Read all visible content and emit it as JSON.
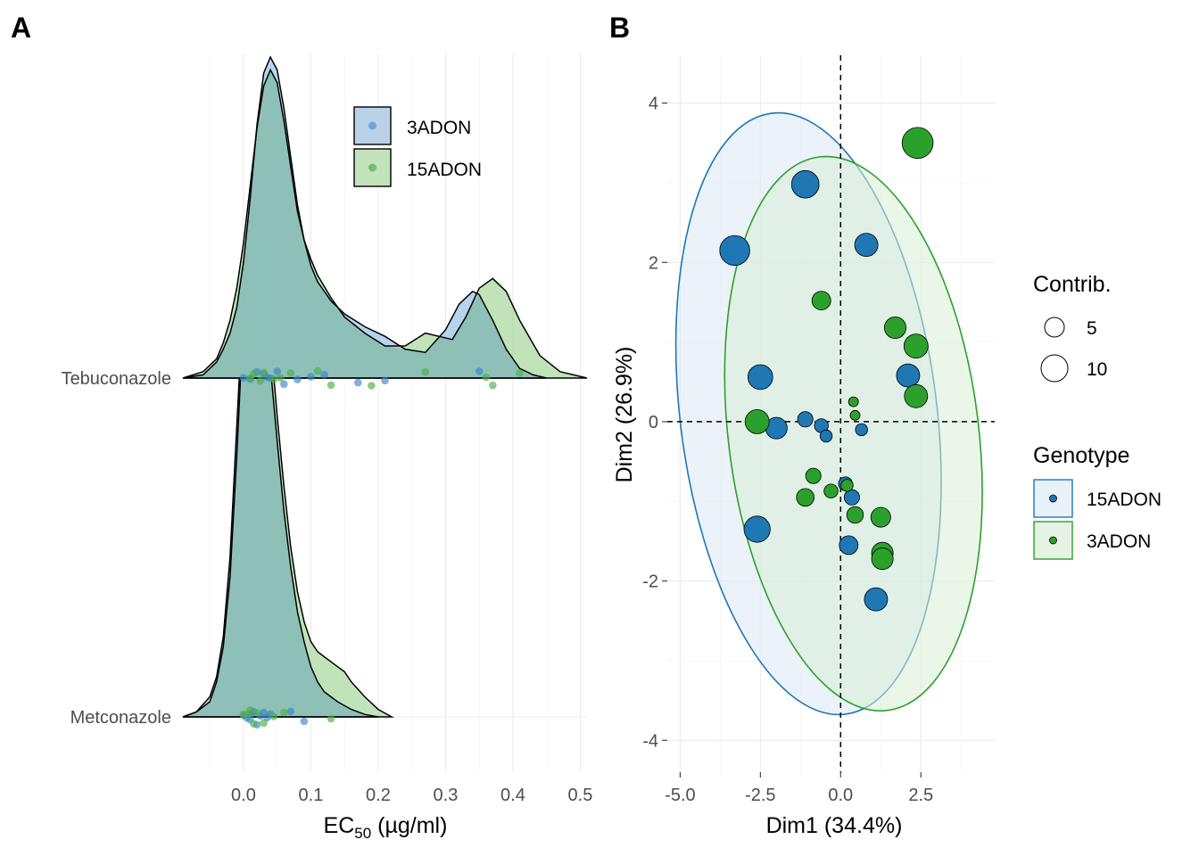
{
  "colors": {
    "blue": "#1f77b4",
    "green": "#2ca02c",
    "blue_fill": "#9dc3e6",
    "green_fill": "#a9d8a0",
    "teal_overlap": "#8cbfb8",
    "grid": "#ebebeb"
  },
  "chart_data": [
    {
      "panel": "A",
      "type": "area",
      "subtype": "ridgeline-density",
      "xlabel_main": "EC",
      "xlabel_sub": "50",
      "xlabel_unit": " (µg/ml)",
      "x_ticks": [
        "0.0",
        "0.1",
        "0.2",
        "0.3",
        "0.4",
        "0.5"
      ],
      "x_tick_values": [
        0.0,
        0.1,
        0.2,
        0.3,
        0.4,
        0.5
      ],
      "xlim": [
        -0.09,
        0.51
      ],
      "categories": [
        "Tebuconazole",
        "Metconazole"
      ],
      "legend": [
        {
          "label": "3ADON",
          "color": "blue"
        },
        {
          "label": "15ADON",
          "color": "green"
        }
      ],
      "legend_position": "top-right",
      "series": [
        {
          "name": "3ADON",
          "category": "Tebuconazole",
          "x": [
            -0.09,
            -0.06,
            -0.04,
            -0.03,
            -0.02,
            -0.01,
            0.0,
            0.01,
            0.02,
            0.03,
            0.04,
            0.05,
            0.06,
            0.07,
            0.08,
            0.09,
            0.1,
            0.11,
            0.13,
            0.15,
            0.18,
            0.21,
            0.24,
            0.27,
            0.3,
            0.32,
            0.34,
            0.35,
            0.37,
            0.39,
            0.41,
            0.43,
            0.45
          ],
          "density": [
            0.0,
            0.01,
            0.05,
            0.09,
            0.14,
            0.22,
            0.36,
            0.56,
            0.79,
            0.95,
            1.0,
            0.96,
            0.84,
            0.69,
            0.54,
            0.43,
            0.35,
            0.3,
            0.24,
            0.2,
            0.16,
            0.13,
            0.09,
            0.08,
            0.15,
            0.23,
            0.27,
            0.26,
            0.18,
            0.09,
            0.03,
            0.01,
            0.0
          ]
        },
        {
          "name": "15ADON",
          "category": "Tebuconazole",
          "x": [
            -0.09,
            -0.06,
            -0.04,
            -0.03,
            -0.02,
            -0.01,
            0.0,
            0.01,
            0.02,
            0.03,
            0.04,
            0.05,
            0.06,
            0.07,
            0.08,
            0.09,
            0.1,
            0.11,
            0.13,
            0.15,
            0.18,
            0.21,
            0.24,
            0.27,
            0.29,
            0.31,
            0.33,
            0.35,
            0.37,
            0.39,
            0.41,
            0.44,
            0.47,
            0.51
          ],
          "density": [
            0.0,
            0.02,
            0.06,
            0.11,
            0.18,
            0.28,
            0.42,
            0.6,
            0.78,
            0.91,
            0.96,
            0.92,
            0.8,
            0.66,
            0.52,
            0.43,
            0.37,
            0.32,
            0.25,
            0.19,
            0.14,
            0.1,
            0.1,
            0.14,
            0.13,
            0.12,
            0.19,
            0.28,
            0.31,
            0.27,
            0.18,
            0.07,
            0.02,
            0.0
          ]
        },
        {
          "name": "3ADON",
          "category": "Metconazole",
          "x": [
            -0.09,
            -0.07,
            -0.05,
            -0.04,
            -0.03,
            -0.02,
            -0.01,
            0.0,
            0.01,
            0.015,
            0.02,
            0.03,
            0.04,
            0.05,
            0.06,
            0.07,
            0.08,
            0.09,
            0.1,
            0.11,
            0.12,
            0.14,
            0.16,
            0.18,
            0.2
          ],
          "density": [
            0.0,
            0.01,
            0.04,
            0.08,
            0.16,
            0.32,
            0.58,
            0.84,
            0.98,
            1.0,
            0.97,
            0.86,
            0.7,
            0.55,
            0.41,
            0.3,
            0.21,
            0.15,
            0.1,
            0.07,
            0.05,
            0.03,
            0.015,
            0.005,
            0.0
          ]
        },
        {
          "name": "15ADON",
          "category": "Metconazole",
          "x": [
            -0.09,
            -0.07,
            -0.05,
            -0.04,
            -0.03,
            -0.02,
            -0.01,
            0.0,
            0.01,
            0.02,
            0.03,
            0.04,
            0.05,
            0.06,
            0.07,
            0.08,
            0.09,
            0.1,
            0.11,
            0.12,
            0.13,
            0.14,
            0.15,
            0.16,
            0.18,
            0.2,
            0.22
          ],
          "density": [
            0.0,
            0.01,
            0.03,
            0.07,
            0.14,
            0.28,
            0.52,
            0.8,
            0.96,
            0.98,
            0.9,
            0.76,
            0.6,
            0.46,
            0.34,
            0.25,
            0.19,
            0.15,
            0.13,
            0.12,
            0.11,
            0.1,
            0.09,
            0.07,
            0.04,
            0.015,
            0.0
          ]
        }
      ],
      "points": {
        "Tebuconazole": {
          "3ADON": [
            0.0,
            0.01,
            0.02,
            0.03,
            0.035,
            0.04,
            0.05,
            0.06,
            0.08,
            0.1,
            0.12,
            0.17,
            0.21,
            0.35
          ],
          "15ADON": [
            0.01,
            0.015,
            0.025,
            0.03,
            0.045,
            0.055,
            0.07,
            0.11,
            0.13,
            0.19,
            0.27,
            0.36,
            0.37,
            0.41
          ]
        },
        "Metconazole": {
          "3ADON": [
            0.0,
            0.005,
            0.01,
            0.012,
            0.015,
            0.02,
            0.025,
            0.03,
            0.035,
            0.04,
            0.07,
            0.09
          ],
          "15ADON": [
            0.0,
            0.005,
            0.01,
            0.015,
            0.02,
            0.03,
            0.045,
            0.06,
            0.13
          ]
        }
      }
    },
    {
      "panel": "B",
      "type": "scatter",
      "xlabel": "Dim1 (34.4%)",
      "ylabel": "Dim2 (26.9%)",
      "xlim": [
        -5.4,
        4.8
      ],
      "ylim": [
        -4.4,
        4.6
      ],
      "x_ticks": [
        "-5.0",
        "-2.5",
        "0.0",
        "2.5"
      ],
      "x_tick_values": [
        -5.0,
        -2.5,
        0.0,
        2.5
      ],
      "y_ticks": [
        "4",
        "2",
        "0",
        "-2",
        "-4"
      ],
      "y_tick_values": [
        4,
        2,
        0,
        -2,
        -4
      ],
      "legend_size_title": "Contrib.",
      "legend_sizes": [
        {
          "label": "5",
          "value": 5
        },
        {
          "label": "10",
          "value": 10
        }
      ],
      "legend_color_title": "Genotype",
      "legend_colors": [
        {
          "label": "15ADON",
          "color": "blue"
        },
        {
          "label": "3ADON",
          "color": "green"
        }
      ],
      "legend_position": "right",
      "ellipses": [
        {
          "group": "15ADON",
          "cx": -1.0,
          "cy": 0.1,
          "rx": 4.0,
          "ry": 3.8
        },
        {
          "group": "3ADON",
          "cx": 0.4,
          "cy": -0.15,
          "rx": 3.9,
          "ry": 3.5
        }
      ],
      "series": [
        {
          "name": "15ADON",
          "points": [
            {
              "x": -3.3,
              "y": 2.15,
              "contrib": 11
            },
            {
              "x": -1.1,
              "y": 2.98,
              "contrib": 9
            },
            {
              "x": 0.8,
              "y": 2.22,
              "contrib": 6
            },
            {
              "x": -2.5,
              "y": 0.56,
              "contrib": 7
            },
            {
              "x": -2.0,
              "y": -0.08,
              "contrib": 5
            },
            {
              "x": -1.1,
              "y": 0.03,
              "contrib": 2
            },
            {
              "x": -0.6,
              "y": -0.05,
              "contrib": 1.5
            },
            {
              "x": -0.45,
              "y": -0.18,
              "contrib": 1
            },
            {
              "x": 0.65,
              "y": -0.1,
              "contrib": 1
            },
            {
              "x": 2.1,
              "y": 0.58,
              "contrib": 6
            },
            {
              "x": 0.15,
              "y": -0.78,
              "contrib": 1.5
            },
            {
              "x": 0.35,
              "y": -0.95,
              "contrib": 2
            },
            {
              "x": -2.6,
              "y": -1.35,
              "contrib": 8
            },
            {
              "x": 0.25,
              "y": -1.55,
              "contrib": 3.5
            },
            {
              "x": 1.1,
              "y": -2.23,
              "contrib": 6
            }
          ]
        },
        {
          "name": "3ADON",
          "points": [
            {
              "x": 2.4,
              "y": 3.5,
              "contrib": 12
            },
            {
              "x": -0.6,
              "y": 1.52,
              "contrib": 3.5
            },
            {
              "x": 1.7,
              "y": 1.18,
              "contrib": 5
            },
            {
              "x": 2.35,
              "y": 0.95,
              "contrib": 6.5
            },
            {
              "x": 2.35,
              "y": 0.32,
              "contrib": 6
            },
            {
              "x": -2.6,
              "y": 0.0,
              "contrib": 6.5
            },
            {
              "x": 0.4,
              "y": 0.25,
              "contrib": 0.5
            },
            {
              "x": 0.45,
              "y": 0.08,
              "contrib": 0.5
            },
            {
              "x": -0.85,
              "y": -0.68,
              "contrib": 2
            },
            {
              "x": 0.2,
              "y": -0.8,
              "contrib": 1
            },
            {
              "x": -0.3,
              "y": -0.87,
              "contrib": 1.5
            },
            {
              "x": -1.1,
              "y": -0.95,
              "contrib": 3
            },
            {
              "x": 0.45,
              "y": -1.17,
              "contrib": 2.5
            },
            {
              "x": 1.25,
              "y": -1.2,
              "contrib": 4
            },
            {
              "x": 1.3,
              "y": -1.65,
              "contrib": 5
            },
            {
              "x": 1.3,
              "y": -1.72,
              "contrib": 5
            }
          ]
        }
      ]
    }
  ]
}
